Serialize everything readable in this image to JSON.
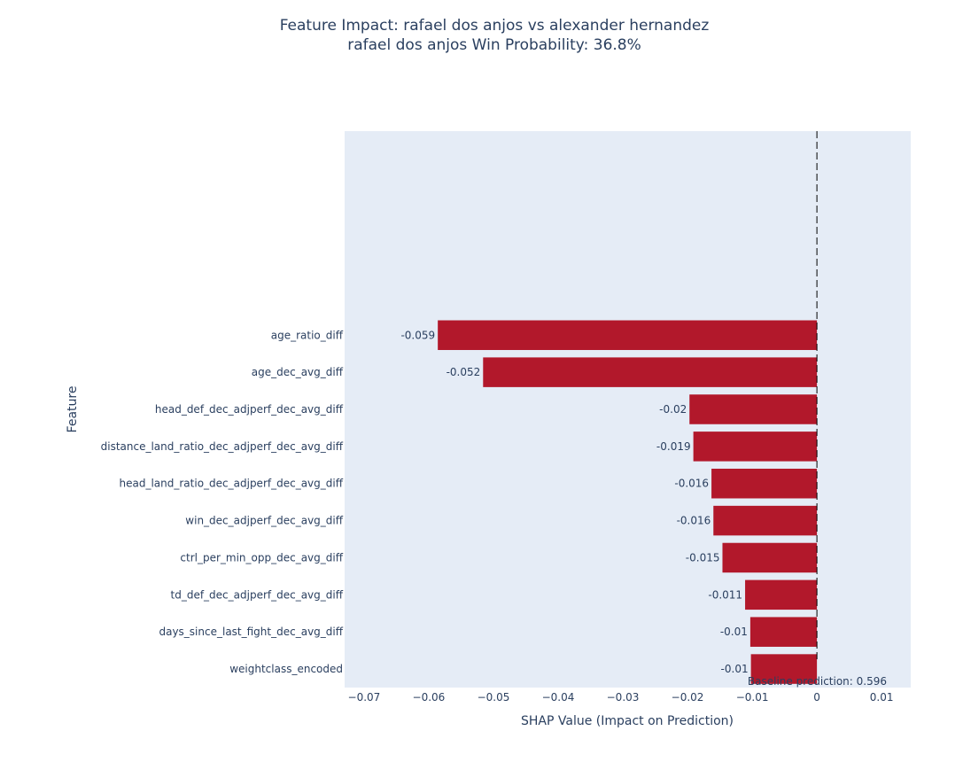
{
  "chart_data": {
    "type": "bar",
    "orientation": "horizontal",
    "title": "Feature Impact: rafael dos anjos vs alexander hernandez",
    "subtitle": "rafael dos anjos Win Probability: 36.8%",
    "xlabel": "SHAP Value (Impact on Prediction)",
    "ylabel": "Feature",
    "xlim": [
      -0.073,
      0.0145
    ],
    "xticks": [
      -0.07,
      -0.06,
      -0.05,
      -0.04,
      -0.03,
      -0.02,
      -0.01,
      0,
      0.01
    ],
    "xtick_labels": [
      "−0.07",
      "−0.06",
      "−0.05",
      "−0.04",
      "−0.03",
      "−0.02",
      "−0.01",
      "0",
      "0.01"
    ],
    "grid": false,
    "bar_color": "#b2182b",
    "plot_bg": "#e5ecf6",
    "reference_line": {
      "x": 0,
      "style": "dashed"
    },
    "category_slots": 15,
    "categories": [
      "age_ratio_diff",
      "age_dec_avg_diff",
      "head_def_dec_adjperf_dec_avg_diff",
      "distance_land_ratio_dec_adjperf_dec_avg_diff",
      "head_land_ratio_dec_adjperf_dec_avg_diff",
      "win_dec_adjperf_dec_avg_diff",
      "ctrl_per_min_opp_dec_avg_diff",
      "td_def_dec_adjperf_dec_avg_diff",
      "days_since_last_fight_dec_avg_diff",
      "weightclass_encoded"
    ],
    "values": [
      -0.0586,
      -0.0516,
      -0.0197,
      -0.0191,
      -0.0163,
      -0.016,
      -0.0146,
      -0.0111,
      -0.0103,
      -0.0102
    ],
    "data_labels": [
      "-0.059",
      "-0.052",
      "-0.02",
      "-0.019",
      "-0.016",
      "-0.016",
      "-0.015",
      "-0.011",
      "-0.01",
      "-0.01"
    ],
    "annotation": "Baseline prediction: 0.596"
  }
}
